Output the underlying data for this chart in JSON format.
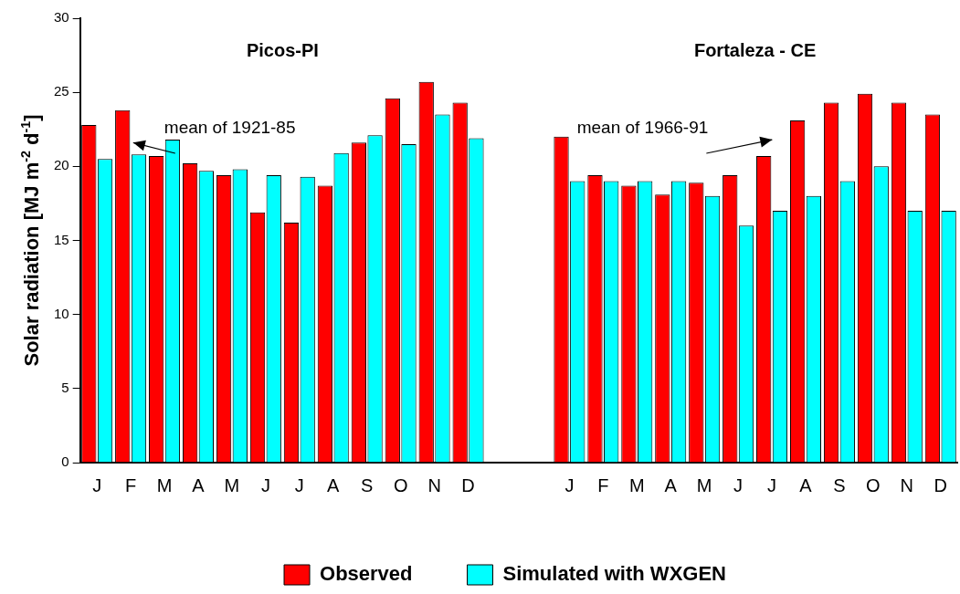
{
  "chart_data": {
    "type": "bar",
    "ylabel": "Solar radiation [MJ m$^{-2}$ d$^{-1}$]",
    "categories": [
      "J",
      "F",
      "M",
      "A",
      "M",
      "J",
      "J",
      "A",
      "S",
      "O",
      "N",
      "D",
      null,
      null,
      "J",
      "F",
      "M",
      "A",
      "M",
      "J",
      "J",
      "A",
      "S",
      "O",
      "N",
      "D"
    ],
    "series": [
      {
        "name": "Observed",
        "color": "#ff0000",
        "values": [
          22.8,
          23.8,
          20.7,
          20.2,
          19.4,
          16.9,
          16.2,
          18.7,
          21.6,
          24.6,
          25.7,
          24.3,
          null,
          null,
          22.0,
          19.4,
          18.7,
          18.1,
          18.9,
          19.4,
          20.7,
          23.1,
          24.3,
          24.9,
          24.3,
          23.5
        ]
      },
      {
        "name": "Simulated with WXGEN",
        "color": "#00ffff",
        "values": [
          20.5,
          20.8,
          21.8,
          19.7,
          19.8,
          19.4,
          19.3,
          20.9,
          22.1,
          21.5,
          23.5,
          21.9,
          null,
          null,
          19.0,
          19.0,
          19.0,
          19.0,
          18.0,
          16.0,
          17.0,
          18.0,
          19.0,
          20.0,
          17.0,
          17.0
        ]
      }
    ],
    "annotations": [
      "Picos-PI",
      "Fortaleza - CE",
      "mean of 1921-85",
      "mean of 1966-91"
    ],
    "ylim": [
      0,
      30
    ],
    "yticks": [
      0,
      5,
      10,
      15,
      20,
      25,
      30
    ],
    "grid": false,
    "legend": "bottom"
  }
}
